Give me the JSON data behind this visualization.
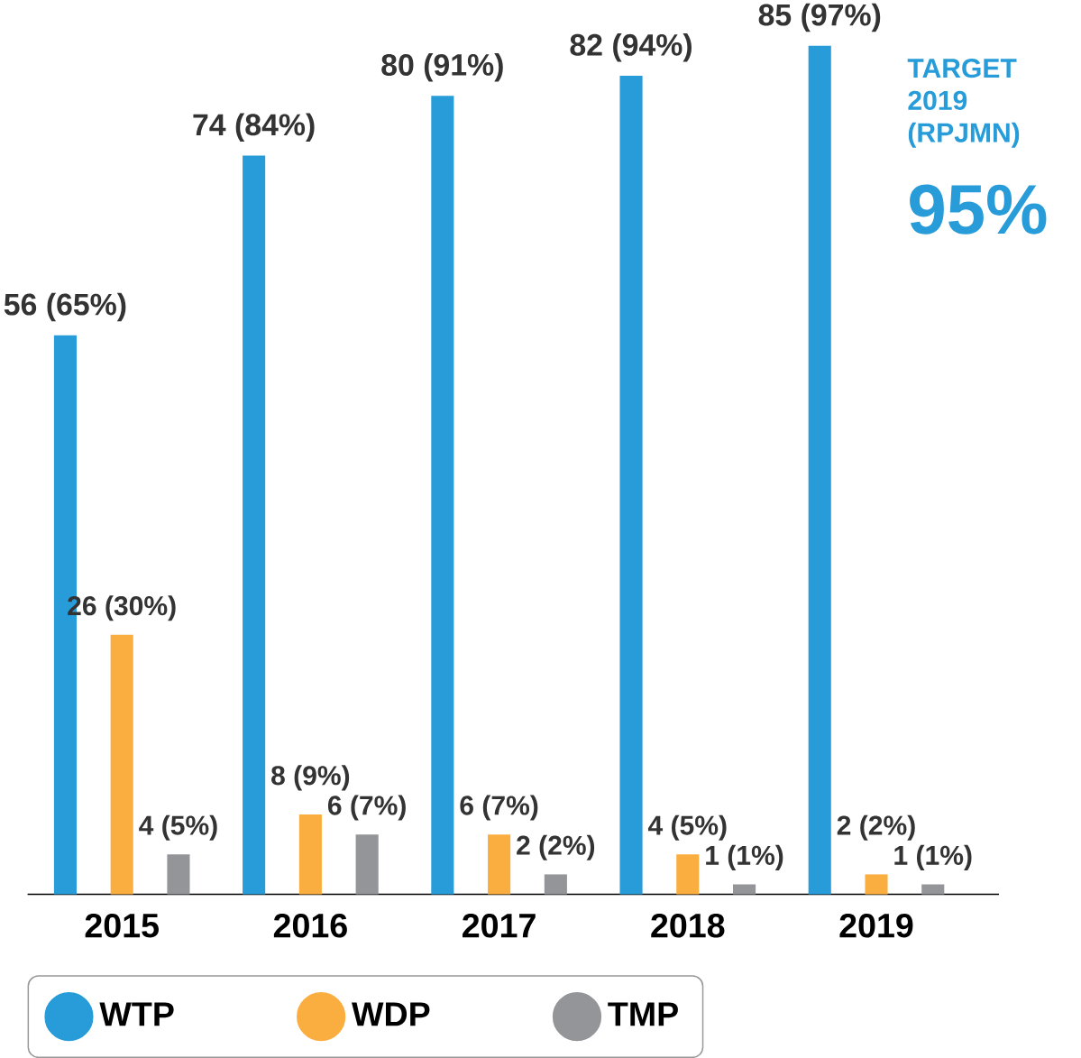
{
  "chart_data": {
    "type": "bar",
    "categories": [
      "2015",
      "2016",
      "2017",
      "2018",
      "2019"
    ],
    "series": [
      {
        "name": "WTP",
        "color": "#279cd9",
        "values": [
          56,
          74,
          80,
          82,
          85
        ],
        "value_labels": [
          "56 (65%)",
          "74 (84%)",
          "80 (91%)",
          "82 (94%)",
          "85 (97%)"
        ]
      },
      {
        "name": "WDP",
        "color": "#fbae40",
        "values": [
          26,
          8,
          6,
          4,
          2
        ],
        "value_labels": [
          "26 (30%)",
          "8 (9%)",
          "6 (7%)",
          "4 (5%)",
          "2 (2%)"
        ]
      },
      {
        "name": "TMP",
        "color": "#939598",
        "values": [
          4,
          6,
          2,
          1,
          1
        ],
        "value_labels": [
          "4 (5%)",
          "6 (7%)",
          "2 (2%)",
          "1 (1%)",
          "1 (1%)"
        ]
      }
    ],
    "legend": "bottom left",
    "annotations": [
      "TARGET 2019 (RPJMN)",
      "95%"
    ]
  }
}
